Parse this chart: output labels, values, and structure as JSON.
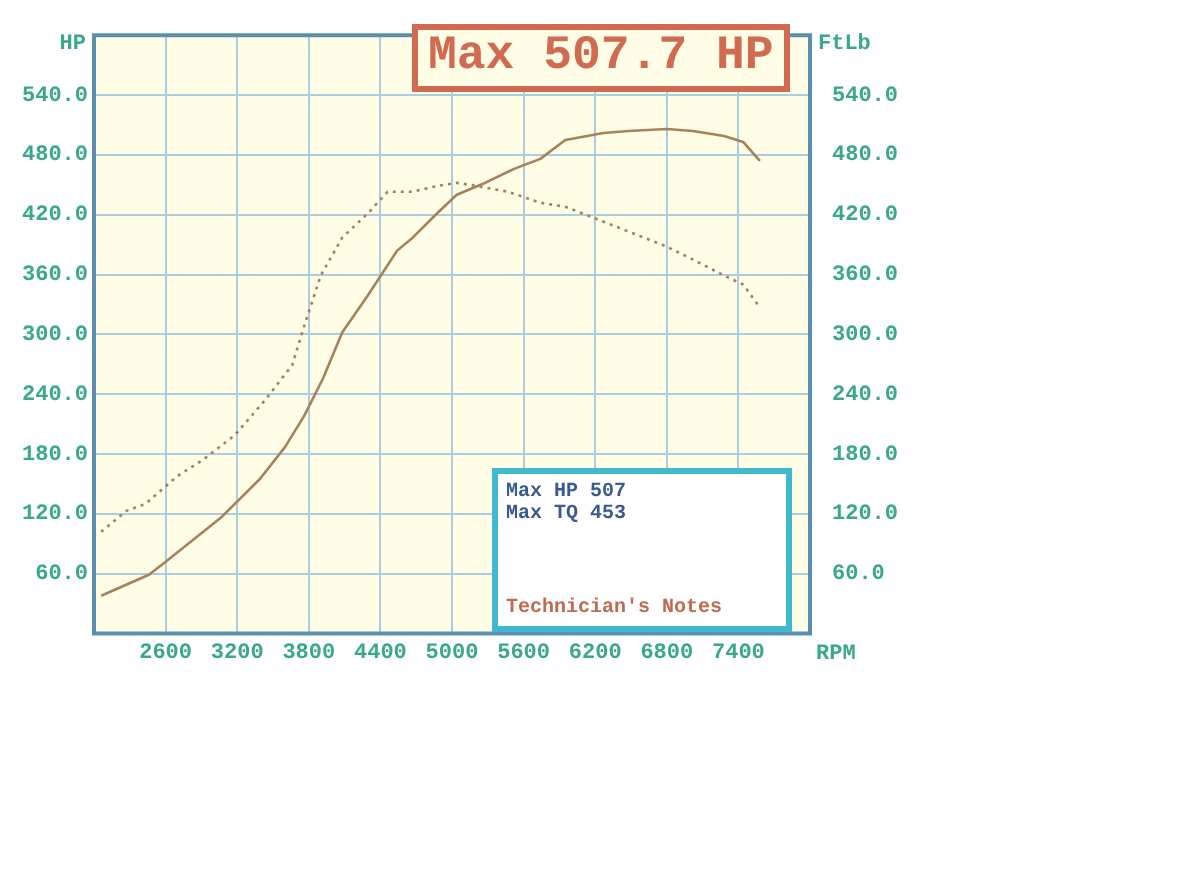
{
  "chart_data": {
    "type": "line",
    "title": "Max 507.7 HP",
    "xlabel": "RPM",
    "ylabel": "HP",
    "y2label": "FtLb",
    "xlim": [
      2000,
      8000
    ],
    "xticks": [
      2600,
      3200,
      3800,
      4400,
      5000,
      5600,
      6200,
      6800,
      7400
    ],
    "ylim": [
      0,
      600
    ],
    "yticks": [
      {
        "value": 60,
        "label": "60.0"
      },
      {
        "value": 120,
        "label": "120.0"
      },
      {
        "value": 180,
        "label": "180.0"
      },
      {
        "value": 240,
        "label": "240.0"
      },
      {
        "value": 300,
        "label": "300.0"
      },
      {
        "value": 360,
        "label": "360.0"
      },
      {
        "value": 420,
        "label": "420.0"
      },
      {
        "value": 480,
        "label": "480.0"
      },
      {
        "value": 540,
        "label": "540.0"
      }
    ],
    "y2lim": [
      0,
      600
    ],
    "y2ticks": [
      {
        "value": 60,
        "label": "60.0"
      },
      {
        "value": 120,
        "label": "120.0"
      },
      {
        "value": 180,
        "label": "180.0"
      },
      {
        "value": 240,
        "label": "240.0"
      },
      {
        "value": 300,
        "label": "300.0"
      },
      {
        "value": 360,
        "label": "360.0"
      },
      {
        "value": 420,
        "label": "420.0"
      },
      {
        "value": 480,
        "label": "480.0"
      },
      {
        "value": 540,
        "label": "540.0"
      }
    ],
    "grid": true,
    "marker": "none",
    "legend": false,
    "annotations": [
      "Max HP 507",
      "Max TQ 453",
      "Technician's Notes"
    ],
    "series": [
      {
        "color": "#a8805c",
        "line_style": "solid",
        "x": [
          2060,
          2460,
          2590,
          3070,
          3390,
          3600,
          3760,
          3920,
          4080,
          4300,
          4540,
          4670,
          4880,
          5040,
          5260,
          5520,
          5740,
          5950,
          6270,
          6480,
          6800,
          7020,
          7280,
          7440,
          7580
        ],
        "values": [
          38,
          59,
          71,
          117,
          155,
          187,
          218,
          256,
          302,
          340,
          384,
          397,
          422,
          440,
          451,
          466,
          476,
          495,
          502,
          504,
          506,
          504,
          499,
          493,
          474
        ]
      },
      {
        "color": "#a8805c",
        "line_style": "dotted",
        "x": [
          2060,
          2270,
          2430,
          2700,
          2910,
          3180,
          3440,
          3660,
          3760,
          3900,
          4080,
          4300,
          4460,
          4670,
          4880,
          5040,
          5200,
          5470,
          5740,
          5950,
          6270,
          6800,
          7020,
          7280,
          7440,
          7580
        ],
        "values": [
          102,
          123,
          130,
          158,
          174,
          199,
          235,
          269,
          308,
          359,
          397,
          422,
          443,
          443,
          449,
          452,
          449,
          443,
          432,
          428,
          413,
          388,
          375,
          359,
          350,
          327
        ]
      }
    ]
  }
}
